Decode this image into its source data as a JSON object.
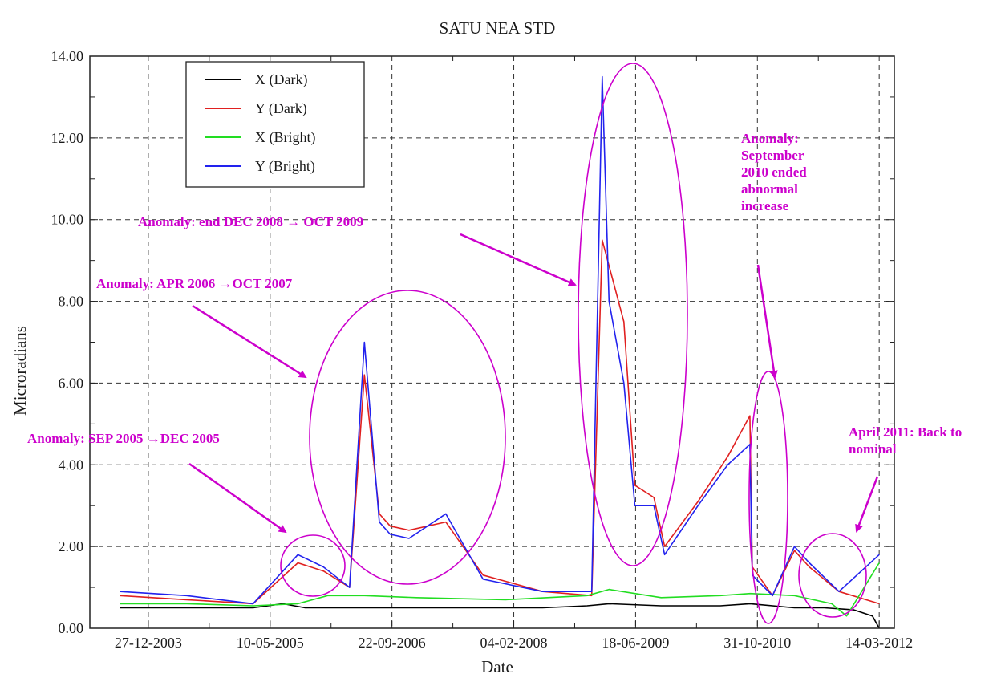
{
  "chart_data": {
    "type": "line",
    "title": "SATU NEA STD",
    "xlabel": "Date",
    "ylabel": "Microradians",
    "ylim": [
      0,
      14
    ],
    "y_ticks": [
      "0.00",
      "2.00",
      "4.00",
      "6.00",
      "8.00",
      "10.00",
      "12.00",
      "14.00"
    ],
    "x_tick_labels": [
      "27-12-2003",
      "10-05-2005",
      "22-09-2006",
      "04-02-2008",
      "18-06-2009",
      "31-10-2010",
      "14-03-2012"
    ],
    "grid": true,
    "legend_position": "top-left",
    "series": [
      {
        "name": "X (Dark)",
        "color": "#000000",
        "x": [
          "2003-09-01",
          "2004-06-01",
          "2005-03-01",
          "2005-07-01",
          "2005-10-01",
          "2006-04-01",
          "2006-10-01",
          "2007-06-01",
          "2007-10-01",
          "2008-06-01",
          "2008-12-01",
          "2009-03-01",
          "2009-10-01",
          "2010-06-01",
          "2010-10-01",
          "2011-04-01",
          "2011-08-01",
          "2011-12-01",
          "2012-02-15",
          "2012-03-14"
        ],
        "values": [
          0.5,
          0.5,
          0.5,
          0.6,
          0.5,
          0.5,
          0.5,
          0.5,
          0.5,
          0.5,
          0.55,
          0.6,
          0.55,
          0.55,
          0.6,
          0.5,
          0.5,
          0.45,
          0.3,
          0.0
        ]
      },
      {
        "name": "Y (Dark)",
        "color": "#e02020",
        "x": [
          "2003-09-01",
          "2004-06-01",
          "2005-03-01",
          "2005-09-01",
          "2005-12-15",
          "2006-04-01",
          "2006-06-01",
          "2006-08-01",
          "2006-09-15",
          "2006-12-01",
          "2007-05-01",
          "2007-10-01",
          "2008-06-01",
          "2008-12-20",
          "2009-02-01",
          "2009-05-01",
          "2009-06-15",
          "2009-09-01",
          "2009-10-15",
          "2010-03-01",
          "2010-07-01",
          "2010-09-30",
          "2010-10-10",
          "2011-01-01",
          "2011-04-01",
          "2011-06-01",
          "2011-10-01",
          "2012-03-14"
        ],
        "values": [
          0.8,
          0.7,
          0.6,
          1.6,
          1.4,
          1.0,
          6.2,
          2.8,
          2.5,
          2.4,
          2.6,
          1.3,
          0.9,
          0.8,
          9.5,
          7.5,
          3.5,
          3.2,
          2.0,
          3.1,
          4.2,
          5.2,
          1.5,
          0.8,
          1.9,
          1.5,
          0.9,
          0.6
        ]
      },
      {
        "name": "X (Bright)",
        "color": "#22dd22",
        "x": [
          "2003-09-01",
          "2004-06-01",
          "2005-03-01",
          "2005-09-01",
          "2006-01-01",
          "2006-06-01",
          "2007-01-01",
          "2008-01-01",
          "2008-12-01",
          "2009-03-01",
          "2009-10-01",
          "2010-06-01",
          "2010-10-01",
          "2011-04-01",
          "2011-09-01",
          "2011-11-01",
          "2012-03-14"
        ],
        "values": [
          0.6,
          0.6,
          0.55,
          0.6,
          0.8,
          0.8,
          0.75,
          0.7,
          0.8,
          0.95,
          0.75,
          0.8,
          0.85,
          0.8,
          0.6,
          0.3,
          1.6
        ]
      },
      {
        "name": "Y (Bright)",
        "color": "#2222ee",
        "x": [
          "2003-09-01",
          "2004-06-01",
          "2005-03-01",
          "2005-09-01",
          "2005-12-15",
          "2006-04-01",
          "2006-06-01",
          "2006-08-01",
          "2006-09-15",
          "2006-12-01",
          "2007-05-01",
          "2007-10-01",
          "2008-06-01",
          "2008-12-20",
          "2009-02-01",
          "2009-03-01",
          "2009-05-01",
          "2009-06-15",
          "2009-09-01",
          "2009-10-15",
          "2010-03-01",
          "2010-07-01",
          "2010-09-30",
          "2010-10-10",
          "2011-01-01",
          "2011-04-01",
          "2011-06-01",
          "2011-10-01",
          "2012-03-14"
        ],
        "values": [
          0.9,
          0.8,
          0.6,
          1.8,
          1.5,
          1.0,
          7.0,
          2.6,
          2.3,
          2.2,
          2.8,
          1.2,
          0.9,
          0.9,
          13.5,
          8.0,
          6.0,
          3.0,
          3.0,
          1.8,
          3.0,
          4.0,
          4.5,
          1.3,
          0.8,
          2.0,
          1.6,
          0.9,
          1.8
        ]
      }
    ]
  },
  "annotations": [
    {
      "text": "Anomaly: end DEC 2008 → OCT 2009"
    },
    {
      "text": "Anomaly: APR 2006 →OCT 2007"
    },
    {
      "text": "Anomaly: SEP 2005 →DEC 2005"
    },
    {
      "text": "Anomaly: September 2010 ended abnormal increase"
    },
    {
      "text": "April 2011: Back to nominal"
    }
  ],
  "annotation_color": "#cc00cc"
}
